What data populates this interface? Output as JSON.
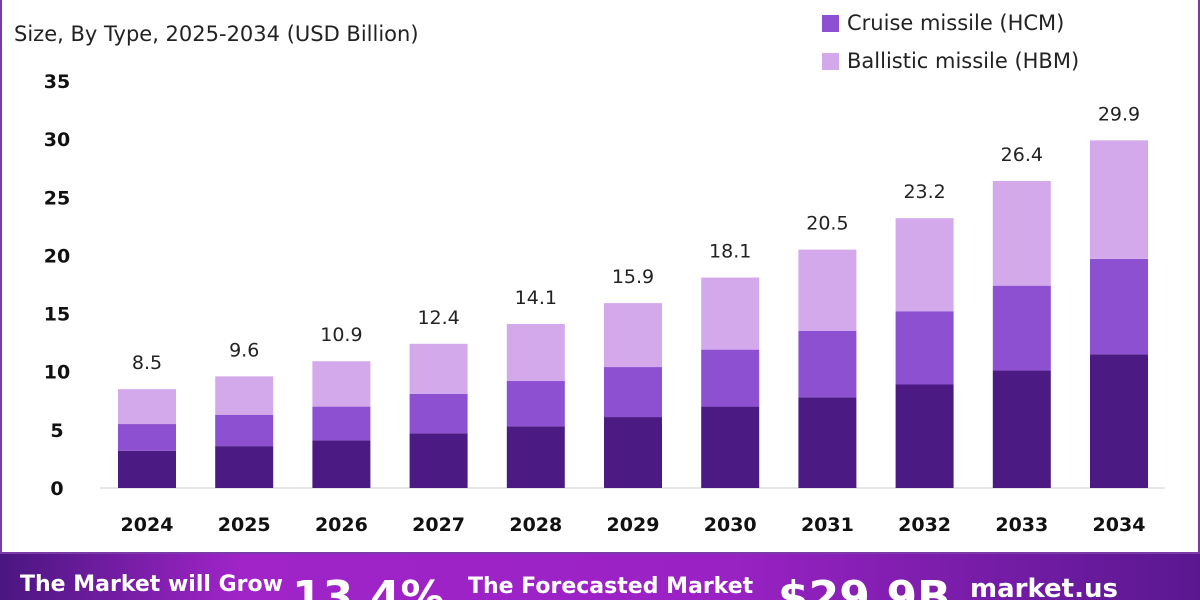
{
  "chart_data": {
    "type": "stacked-bar",
    "subtitle": "Size, By Type, 2025-2034 (USD Billion)",
    "categories": [
      "2024",
      "2025",
      "2026",
      "2027",
      "2028",
      "2029",
      "2030",
      "2031",
      "2032",
      "2033",
      "2034"
    ],
    "series": [
      {
        "values": [
          3.2,
          3.6,
          4.1,
          4.7,
          5.3,
          6.1,
          7.0,
          7.8,
          8.9,
          10.1,
          11.5
        ],
        "color": "#4b1a82"
      },
      {
        "name": "Cruise missile (HCM)",
        "values": [
          2.3,
          2.7,
          2.9,
          3.4,
          3.9,
          4.3,
          4.9,
          5.7,
          6.3,
          7.3,
          8.2
        ],
        "color": "#8c50d0"
      },
      {
        "name": "Ballistic missile (HBM)",
        "values": [
          3.0,
          3.3,
          3.9,
          4.3,
          4.9,
          5.5,
          6.2,
          7.0,
          8.0,
          9.0,
          10.2
        ],
        "color": "#d3a9ec"
      }
    ],
    "totals": [
      "8.5",
      "9.6",
      "10.9",
      "12.4",
      "14.1",
      "15.9",
      "18.1",
      "20.5",
      "23.2",
      "26.4",
      "29.9"
    ],
    "yticks": [
      "0",
      "5",
      "10",
      "15",
      "20",
      "25",
      "30",
      "35"
    ],
    "ylim": [
      0,
      35
    ],
    "grid": false,
    "legend": "top-right"
  },
  "banner": {
    "grow_label": "The Market will Grow",
    "cagr": "13.4%",
    "forecast_label": "The Forecasted Market",
    "forecast_value": "$29.9B",
    "brand": "market.us"
  }
}
